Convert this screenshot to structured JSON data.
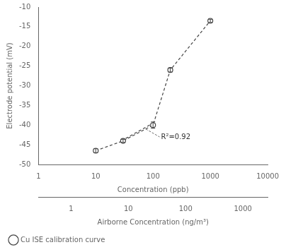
{
  "chart_data": {
    "type": "line",
    "xlabel": "Concentration (ppb)",
    "ylabel": "Electrode potential (mV)",
    "x2label": "Airborne Concentration (ng/m³)",
    "series": [
      {
        "name": "Cu ISE calibration curve",
        "x": [
          10,
          30,
          100,
          200,
          1000
        ],
        "values": [
          -46.5,
          -44.0,
          -40.0,
          -26.0,
          -13.5
        ],
        "errors": [
          0.5,
          0.4,
          0.8,
          0.5,
          0.4
        ],
        "color": "#444444",
        "marker": "circle",
        "line_style": "dashed"
      },
      {
        "x": [
          28,
          100
        ],
        "values": [
          -44.0,
          -39.5
        ],
        "color": "#444444",
        "marker": "none",
        "line_style": "dashed"
      }
    ],
    "annotations": [
      {
        "text": "R²=0.92",
        "x": 130,
        "y": -43.0,
        "arrow_x": 75,
        "arrow_y": -41.0
      }
    ],
    "log": "x",
    "xlim": [
      1,
      10000
    ],
    "xticks": [
      1,
      10,
      100,
      1000,
      10000
    ],
    "x2lim": [
      0.27,
      2700
    ],
    "x2ticks": [
      1,
      10,
      100,
      1000
    ],
    "ylim": [
      -50,
      -10
    ],
    "yticks": [
      -10,
      -15,
      -20,
      -25,
      -30,
      -35,
      -40,
      -45,
      -50
    ],
    "grid": false,
    "legend": "bottom"
  }
}
